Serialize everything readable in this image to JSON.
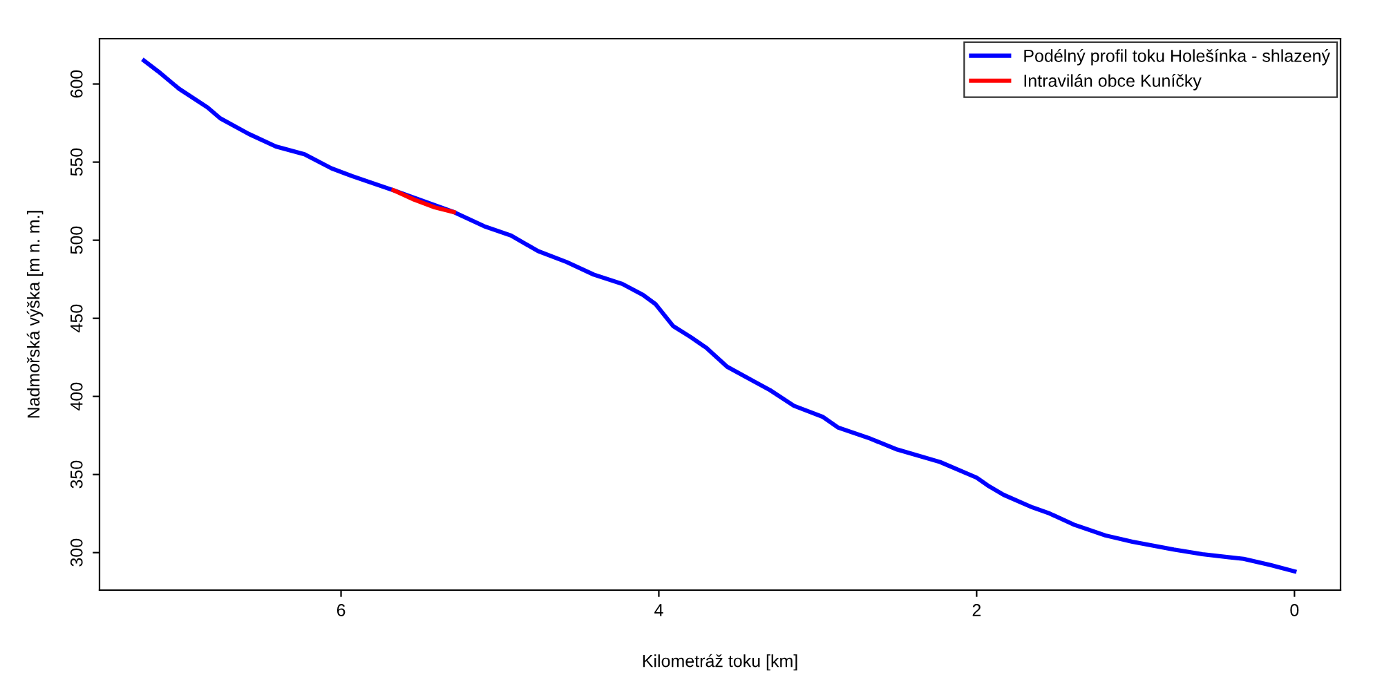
{
  "chart_data": {
    "type": "line",
    "xlabel": "Kilometráž toku [km]",
    "ylabel": "Nadmořská výška [m n. m.]",
    "xlim": [
      7.52,
      -0.29
    ],
    "ylim": [
      276,
      629
    ],
    "xticks": [
      0,
      2,
      4,
      6
    ],
    "yticks": [
      300,
      350,
      400,
      450,
      500,
      550,
      600
    ],
    "grid": false,
    "legend": "top right",
    "marker": "none",
    "line_style": "solid",
    "series": [
      {
        "name": "Podélný profil toku Holešínka - shlazený",
        "color": "#0000ff",
        "x": [
          7.24,
          7.15,
          7.02,
          6.84,
          6.76,
          6.58,
          6.41,
          6.23,
          6.06,
          5.93,
          5.67,
          5.29,
          5.1,
          4.93,
          4.76,
          4.58,
          4.41,
          4.23,
          4.1,
          4.02,
          3.91,
          3.8,
          3.7,
          3.57,
          3.39,
          3.3,
          3.15,
          2.97,
          2.87,
          2.67,
          2.5,
          2.23,
          2.0,
          1.93,
          1.83,
          1.65,
          1.54,
          1.39,
          1.19,
          1.02,
          0.76,
          0.58,
          0.32,
          0.15,
          0
        ],
        "values": [
          615,
          608,
          597,
          585,
          578,
          568,
          560,
          555,
          546,
          541,
          532,
          518,
          509,
          503,
          493,
          486,
          478,
          472,
          465,
          459,
          445,
          438,
          431,
          419,
          409,
          404,
          394,
          387,
          380,
          373,
          366,
          358,
          348,
          343,
          337,
          329,
          325,
          318,
          311,
          307,
          302,
          299,
          296,
          292,
          288
        ]
      },
      {
        "name": "Intravilán obce Kuníčky",
        "color": "#ff0000",
        "x": [
          5.67,
          5.54,
          5.41,
          5.29
        ],
        "values": [
          532,
          526,
          521,
          518
        ]
      }
    ]
  }
}
